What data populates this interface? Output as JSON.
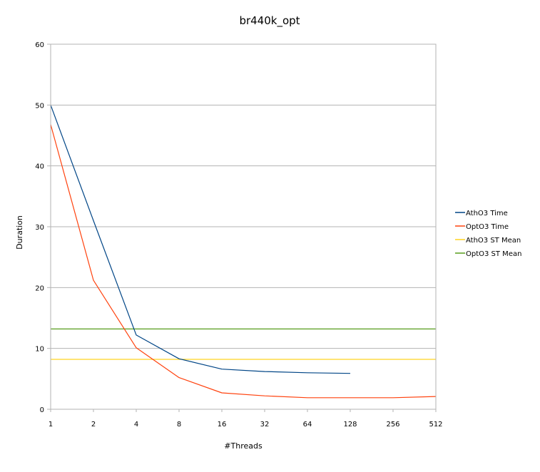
{
  "chart_data": {
    "type": "line",
    "title": "br440k_opt",
    "xlabel": "#Threads",
    "ylabel": "Duration",
    "categories": [
      "1",
      "2",
      "4",
      "8",
      "16",
      "32",
      "64",
      "128",
      "256",
      "512"
    ],
    "ylim": [
      0,
      60
    ],
    "yticks": [
      "0",
      "10",
      "20",
      "30",
      "40",
      "50",
      "60"
    ],
    "grid": true,
    "legend_position": "right",
    "series": [
      {
        "name": "AthO3 Time",
        "color": "#004586",
        "values": [
          50.0,
          31.0,
          12.2,
          8.3,
          6.6,
          6.2,
          6.0,
          5.9,
          null,
          null
        ]
      },
      {
        "name": "OptO3 Time",
        "color": "#ff420e",
        "values": [
          46.8,
          21.2,
          10.1,
          5.2,
          2.7,
          2.2,
          1.9,
          1.9,
          1.9,
          2.1
        ]
      },
      {
        "name": "AthO3 ST Mean",
        "color": "#ffd320",
        "values": [
          8.2,
          8.2,
          8.2,
          8.2,
          8.2,
          8.2,
          8.2,
          8.2,
          8.2,
          8.2
        ]
      },
      {
        "name": "OptO3 ST Mean",
        "color": "#579d1c",
        "values": [
          13.2,
          13.2,
          13.2,
          13.2,
          13.2,
          13.2,
          13.2,
          13.2,
          13.2,
          13.2
        ]
      }
    ]
  }
}
